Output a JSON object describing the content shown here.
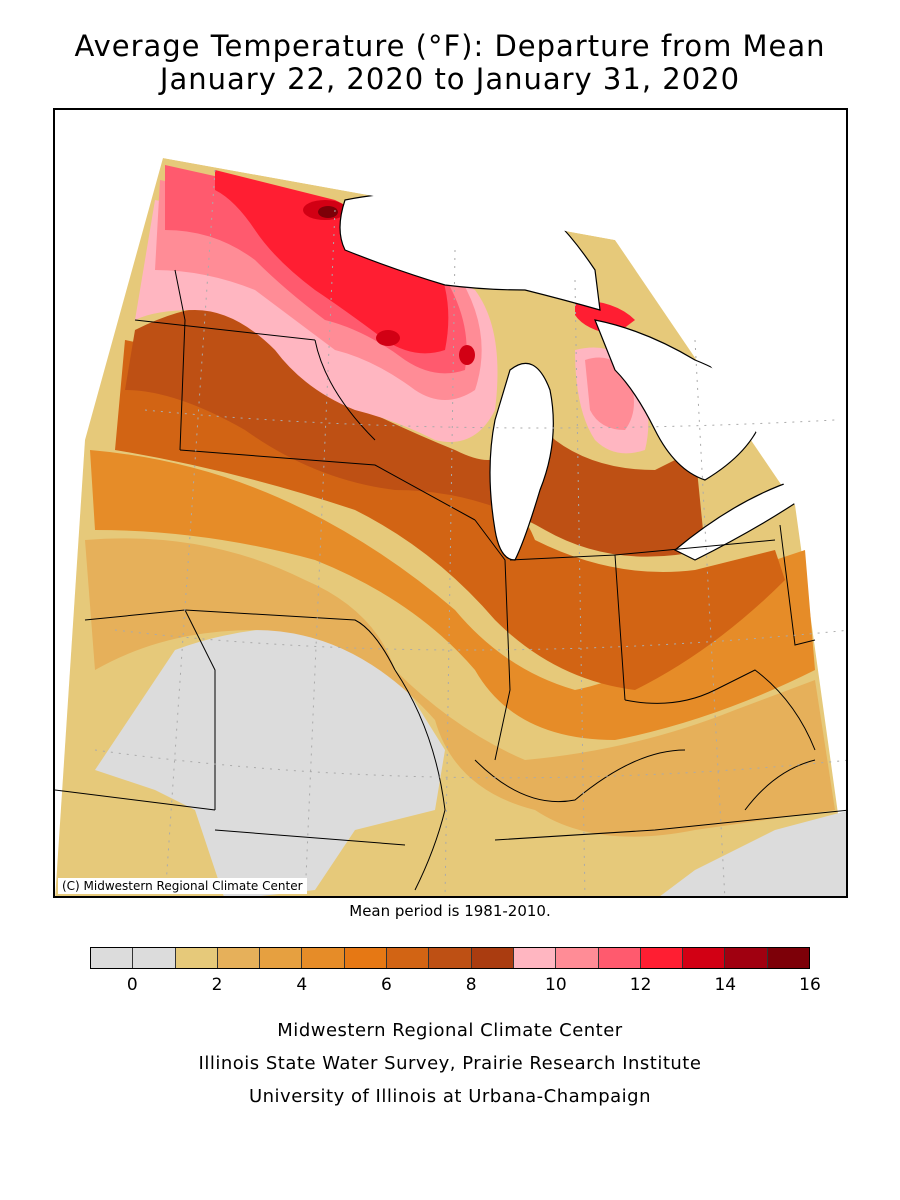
{
  "title": {
    "line1": "Average Temperature (°F): Departure from Mean",
    "line2": "January 22, 2020 to January 31, 2020"
  },
  "map": {
    "copyright": "(C) Midwestern Regional Climate Center",
    "mean_period": "Mean period is 1981-2010."
  },
  "legend": {
    "colors": [
      "#dcdcdc",
      "#dcdcdc",
      "#e6c97a",
      "#e6b05a",
      "#e6a040",
      "#e68c28",
      "#e67814",
      "#d26414",
      "#be5014",
      "#aa3c10",
      "#ffb6c1",
      "#ff8c96",
      "#ff5a6e",
      "#ff1e32",
      "#d20014",
      "#a00010",
      "#7d0008"
    ],
    "labels": [
      {
        "text": "0",
        "value": 0
      },
      {
        "text": "2",
        "value": 2
      },
      {
        "text": "4",
        "value": 4
      },
      {
        "text": "6",
        "value": 6
      },
      {
        "text": "8",
        "value": 8
      },
      {
        "text": "10",
        "value": 10
      },
      {
        "text": "12",
        "value": 12
      },
      {
        "text": "14",
        "value": 14
      },
      {
        "text": "16",
        "value": 16
      }
    ],
    "min": -1,
    "max": 16
  },
  "credits": {
    "line1": "Midwestern Regional Climate Center",
    "line2": "Illinois State Water Survey, Prairie Research Institute",
    "line3": "University of Illinois at Urbana-Champaign"
  }
}
